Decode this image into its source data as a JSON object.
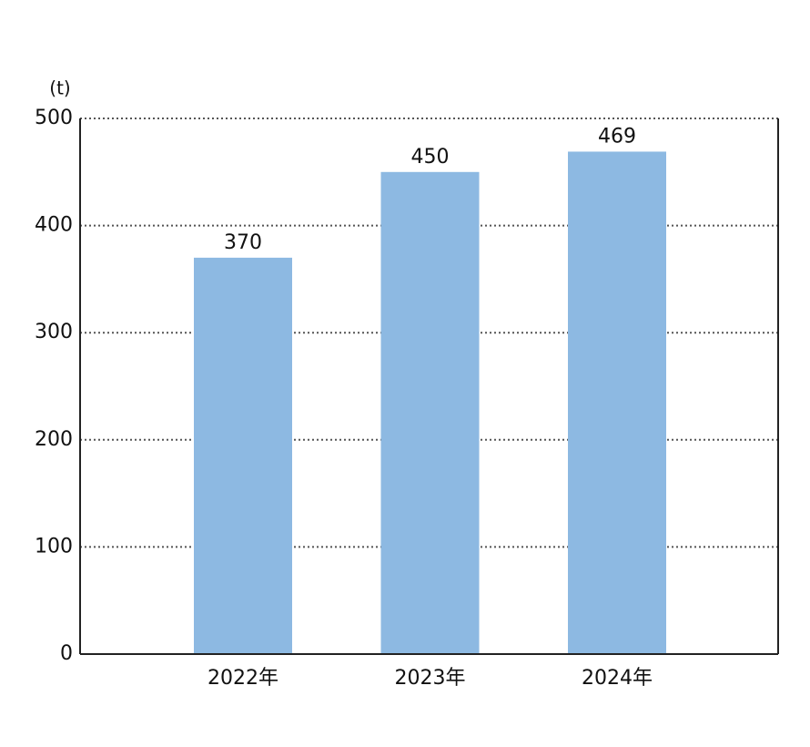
{
  "chart_data": {
    "type": "bar",
    "y_unit": "(t)",
    "categories": [
      "2022年",
      "2023年",
      "2024年"
    ],
    "values": [
      370,
      450,
      469
    ],
    "color": "#8db9e2",
    "ylim": [
      0,
      500
    ],
    "yticks": [
      0,
      100,
      200,
      300,
      400,
      500
    ],
    "grid": true
  }
}
